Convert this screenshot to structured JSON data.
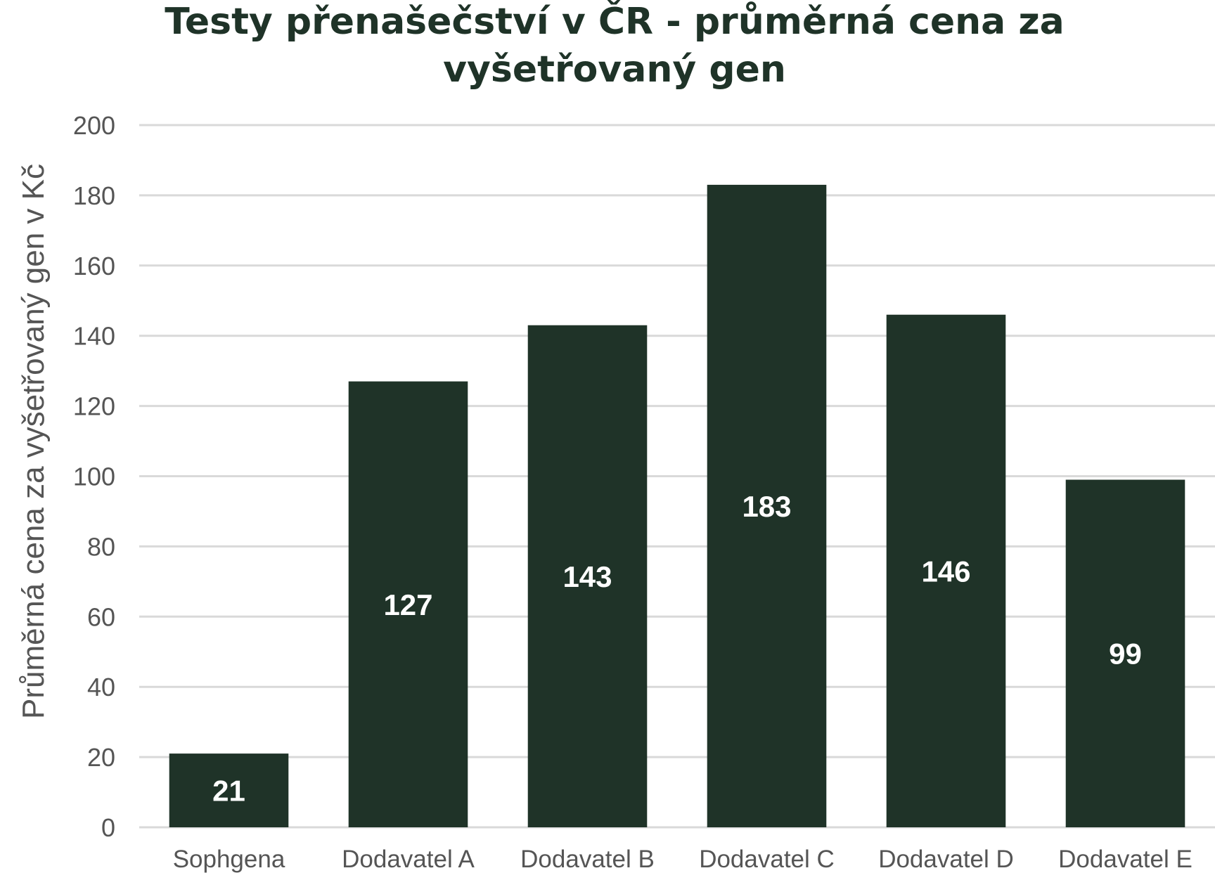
{
  "chart_data": {
    "type": "bar",
    "title_lines": [
      "Testy přenašečství v ČR - průměrná cena za",
      "vyšetřovaný gen"
    ],
    "xlabel": "",
    "ylabel": "Průměrná cena za vyšetřovaný gen v Kč",
    "categories": [
      "Sophgena",
      "Dodavatel A",
      "Dodavatel B",
      "Dodavatel C",
      "Dodavatel D",
      "Dodavatel E"
    ],
    "values": [
      21,
      127,
      143,
      183,
      146,
      99
    ],
    "data_labels": [
      "21",
      "127",
      "143",
      "183",
      "146",
      "99"
    ],
    "ylim": [
      0,
      200
    ],
    "yticks": [
      "0",
      "20",
      "40",
      "60",
      "80",
      "100",
      "120",
      "140",
      "160",
      "180",
      "200"
    ],
    "grid": true,
    "legend": "none",
    "colors": {
      "bar": "#1f3328",
      "title": "#1f3328",
      "grid": "#d9d9d9",
      "text": "#555555"
    }
  }
}
